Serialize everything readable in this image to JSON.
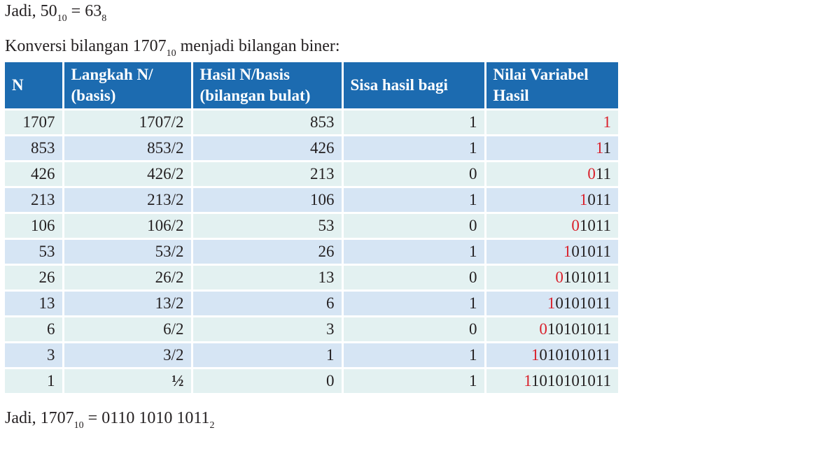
{
  "intro_line": {
    "prefix": "Jadi, 50",
    "sub1": "10",
    "mid": " = 63",
    "sub2": "8"
  },
  "heading_line": {
    "prefix": "Konversi bilangan 1707",
    "sub": "10",
    "suffix": " menjadi bilangan biner:"
  },
  "table": {
    "headers": {
      "n": "N",
      "step_1": "Langkah N/",
      "step_2": "(basis)",
      "result_1": "Hasil N/basis",
      "result_2": "(bilangan bulat)",
      "remainder": "Sisa hasil bagi",
      "value_1": "Nilai Variabel",
      "value_2": "Hasil"
    },
    "rows": [
      {
        "n": "1707",
        "step": "1707/2",
        "result": "853",
        "remainder": "1",
        "value_new": "1",
        "value_rest": ""
      },
      {
        "n": "853",
        "step": "853/2",
        "result": "426",
        "remainder": "1",
        "value_new": "1",
        "value_rest": "1"
      },
      {
        "n": "426",
        "step": "426/2",
        "result": "213",
        "remainder": "0",
        "value_new": "0",
        "value_rest": "11"
      },
      {
        "n": "213",
        "step": "213/2",
        "result": "106",
        "remainder": "1",
        "value_new": "1",
        "value_rest": "011"
      },
      {
        "n": "106",
        "step": "106/2",
        "result": "53",
        "remainder": "0",
        "value_new": "0",
        "value_rest": "1011"
      },
      {
        "n": "53",
        "step": "53/2",
        "result": "26",
        "remainder": "1",
        "value_new": "1",
        "value_rest": "01011"
      },
      {
        "n": "26",
        "step": "26/2",
        "result": "13",
        "remainder": "0",
        "value_new": "0",
        "value_rest": "101011"
      },
      {
        "n": "13",
        "step": "13/2",
        "result": "6",
        "remainder": "1",
        "value_new": "1",
        "value_rest": "0101011"
      },
      {
        "n": "6",
        "step": "6/2",
        "result": "3",
        "remainder": "0",
        "value_new": "0",
        "value_rest": "10101011"
      },
      {
        "n": "3",
        "step": "3/2",
        "result": "1",
        "remainder": "1",
        "value_new": "1",
        "value_rest": "010101011"
      },
      {
        "n": "1",
        "step": "½",
        "result": "0",
        "remainder": "1",
        "value_new": "1",
        "value_rest": "1010101011"
      }
    ]
  },
  "conclusion_line": {
    "prefix": "Jadi, 1707",
    "sub1": "10",
    "mid": " = 0110 1010 1011",
    "sub2": "2"
  },
  "colors": {
    "header_bg": "#1c6bb0",
    "row_odd": "#e3f1f1",
    "row_even": "#d6e5f4",
    "new_bit": "#d9202b"
  }
}
